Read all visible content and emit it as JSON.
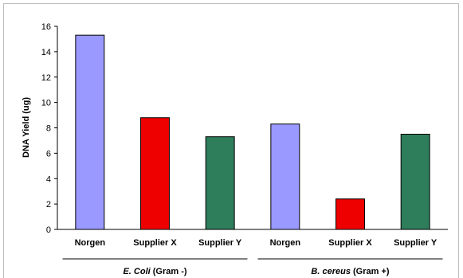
{
  "chart_data": {
    "type": "bar",
    "ylabel": "DNA Yield (ug)",
    "ylim": [
      0,
      16
    ],
    "y_ticks": [
      0,
      2,
      4,
      6,
      8,
      10,
      12,
      14,
      16
    ],
    "grid": false,
    "categories": [
      "Norgen",
      "Supplier X",
      "Supplier Y",
      "Norgen",
      "Supplier X",
      "Supplier Y"
    ],
    "values": [
      15.3,
      8.8,
      7.3,
      8.3,
      2.4,
      7.5
    ],
    "bar_colors": [
      "#9999ff",
      "#ee0000",
      "#2e7d5b",
      "#9999ff",
      "#ee0000",
      "#2e7d5b"
    ],
    "groups": [
      {
        "name_italic": "E. Coli",
        "name_rest": " (Gram -)",
        "members": [
          0,
          1,
          2
        ]
      },
      {
        "name_italic": "B. cereus",
        "name_rest": " (Gram +)",
        "members": [
          3,
          4,
          5
        ]
      }
    ]
  }
}
